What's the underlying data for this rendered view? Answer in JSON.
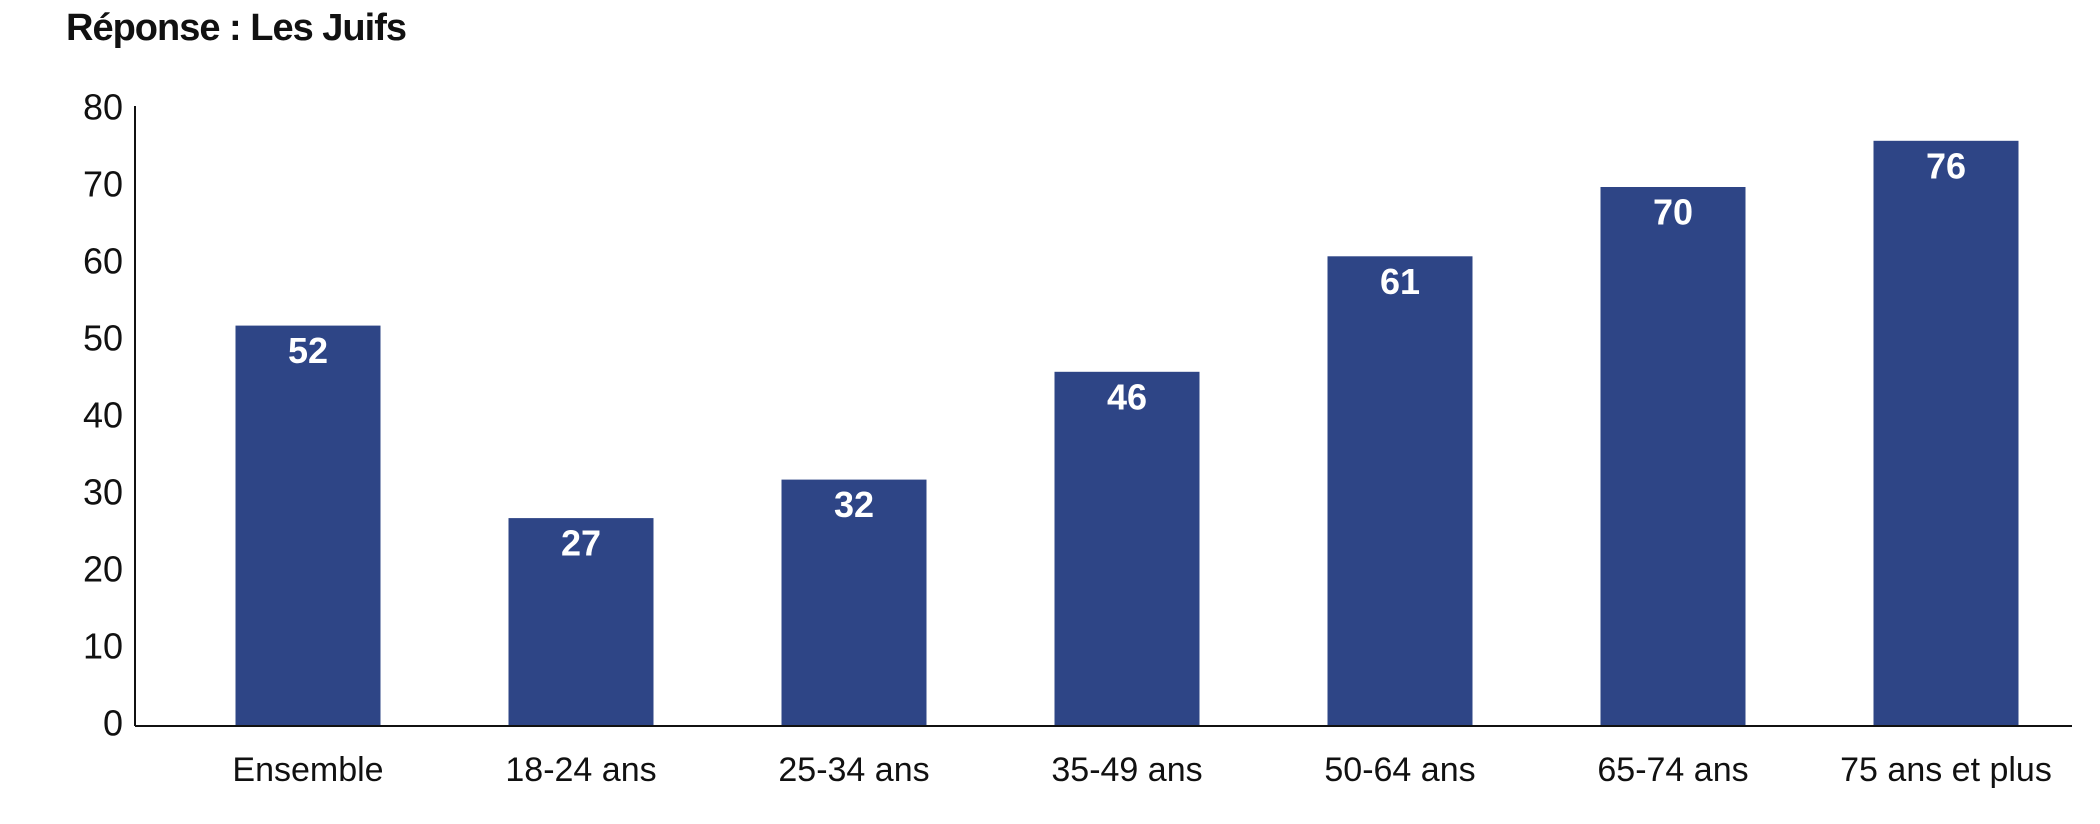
{
  "chart_data": {
    "type": "bar",
    "title": "Réponse : Les Juifs",
    "categories": [
      "Ensemble",
      "18-24 ans",
      "25-34 ans",
      "35-49 ans",
      "50-64 ans",
      "65-74 ans",
      "75 ans et plus"
    ],
    "values": [
      52,
      27,
      32,
      46,
      61,
      70,
      76
    ],
    "color": "#2e4586",
    "ylim": [
      0,
      80
    ],
    "yticks": [
      0,
      10,
      20,
      30,
      40,
      50,
      60,
      70,
      80
    ],
    "grid": false
  }
}
